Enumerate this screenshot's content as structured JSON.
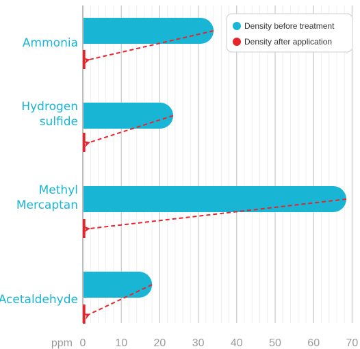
{
  "chart_data": {
    "type": "bar",
    "orientation": "horizontal",
    "categories": [
      [
        "Ammonia"
      ],
      [
        "Hydrogen",
        "sulfide"
      ],
      [
        "Methyl",
        "Mercaptan"
      ],
      [
        "Acetaldehyde"
      ]
    ],
    "series": [
      {
        "name": "Density before treatment",
        "color": "#18b5d4",
        "values": [
          34,
          23.5,
          68.5,
          18
        ]
      },
      {
        "name": "Density after application",
        "color": "#e8242b",
        "values": [
          0.3,
          0.3,
          0.3,
          0.3
        ]
      }
    ],
    "xunit": "ppm",
    "xticks": [
      0,
      10,
      20,
      30,
      40,
      50,
      60,
      70
    ],
    "xlim": [
      0,
      70
    ],
    "grid": true,
    "legend_position": "top-right",
    "annotation": "dashed red arrows from each before-treatment bar end to its after-application value"
  }
}
